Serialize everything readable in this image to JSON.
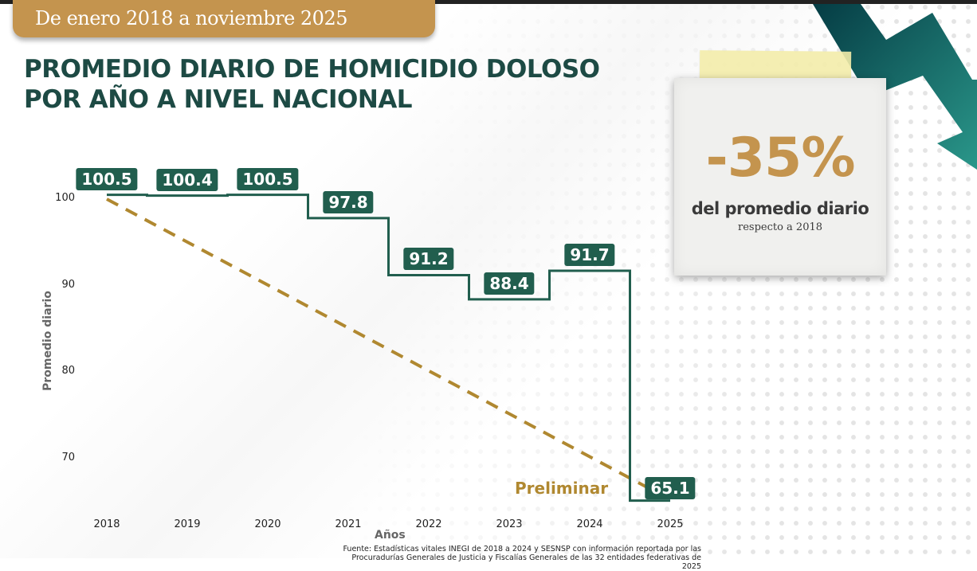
{
  "header": {
    "date_range": "De enero 2018 a noviembre 2025",
    "title_line1": "PROMEDIO DIARIO DE HOMICIDIO DOLOSO",
    "title_line2": "POR AÑO A NIVEL NACIONAL"
  },
  "highlight": {
    "value": "-35%",
    "subtitle": "del promedio diario",
    "subtitle2": "respecto a 2018",
    "icon": "zigzag-down-arrow-icon"
  },
  "colors": {
    "brand_gold": "#c4944e",
    "brand_green": "#215e4e",
    "title_green": "#1d4a44",
    "trend_dash": "#b08830"
  },
  "chart_data": {
    "type": "line",
    "style": "step",
    "title": "PROMEDIO DIARIO DE HOMICIDIO DOLOSO POR AÑO A NIVEL NACIONAL",
    "subtitle": "De enero 2018 a noviembre 2025",
    "xlabel": "Años",
    "ylabel": "Promedio diario",
    "categories": [
      "2018",
      "2019",
      "2020",
      "2021",
      "2022",
      "2023",
      "2024",
      "2025"
    ],
    "series": [
      {
        "name": "Promedio diario",
        "values": [
          100.5,
          100.4,
          100.5,
          97.8,
          91.2,
          88.4,
          91.7,
          65.1
        ]
      }
    ],
    "labels": [
      "100.5",
      "100.4",
      "100.5",
      "97.8",
      "91.2",
      "88.4",
      "91.7",
      "65.1"
    ],
    "yticks": [
      "100",
      "90",
      "80",
      "70"
    ],
    "ylim": [
      64,
      102
    ],
    "grid": false,
    "trend_line": {
      "from": {
        "x": "2018",
        "y": 100
      },
      "to": {
        "x": "2025",
        "y": 66
      },
      "style": "dashed-arrow"
    },
    "annotations": [
      "Preliminar"
    ]
  },
  "footer": {
    "source_line1": "Fuente: Estadísticas vitales INEGI de 2018 a 2024 y SESNSP con información reportada por las",
    "source_line2": "Procuradurías Generales de Justicia y Fiscalías Generales de las 32 entidades federativas de 2025"
  }
}
